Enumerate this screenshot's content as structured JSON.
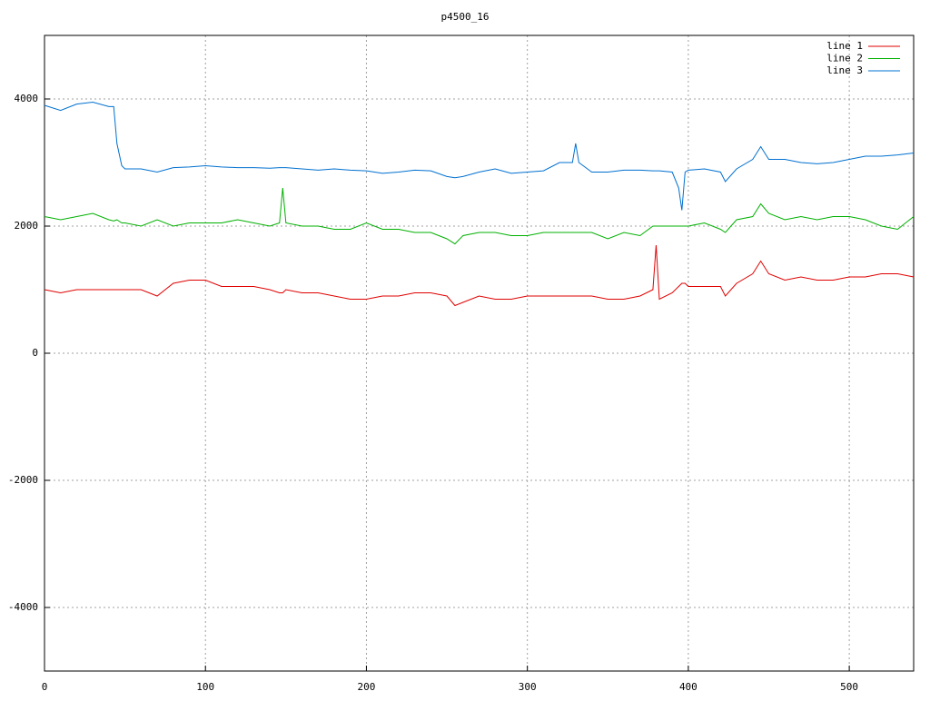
{
  "chart_data": {
    "type": "line",
    "title": "p4500_16",
    "x": [
      0,
      10,
      20,
      30,
      40,
      43,
      45,
      48,
      50,
      60,
      70,
      80,
      90,
      100,
      110,
      120,
      130,
      140,
      146,
      148,
      150,
      160,
      170,
      180,
      190,
      200,
      210,
      220,
      230,
      240,
      250,
      255,
      260,
      270,
      280,
      290,
      300,
      310,
      320,
      328,
      330,
      332,
      340,
      350,
      360,
      370,
      378,
      380,
      382,
      390,
      394,
      396,
      398,
      400,
      410,
      420,
      423,
      430,
      440,
      445,
      450,
      460,
      470,
      480,
      490,
      500,
      510,
      520,
      530,
      540
    ],
    "series": [
      {
        "name": "line 1",
        "color": "#e00000",
        "values": [
          1000,
          950,
          1000,
          1000,
          1000,
          1000,
          1000,
          1000,
          1000,
          1000,
          900,
          1100,
          1150,
          1150,
          1050,
          1050,
          1050,
          1000,
          950,
          950,
          1000,
          950,
          950,
          900,
          850,
          850,
          900,
          900,
          950,
          950,
          900,
          750,
          800,
          900,
          850,
          850,
          900,
          900,
          900,
          900,
          900,
          900,
          900,
          850,
          850,
          900,
          1000,
          1700,
          850,
          950,
          1050,
          1100,
          1100,
          1050,
          1050,
          1050,
          900,
          1100,
          1250,
          1450,
          1250,
          1150,
          1200,
          1150,
          1150,
          1200,
          1200,
          1250,
          1250,
          1200
        ]
      },
      {
        "name": "line 2",
        "color": "#00b000",
        "values": [
          2150,
          2100,
          2150,
          2200,
          2100,
          2080,
          2100,
          2050,
          2050,
          2000,
          2100,
          2000,
          2050,
          2050,
          2050,
          2100,
          2050,
          2000,
          2050,
          2600,
          2050,
          2000,
          2000,
          1950,
          1950,
          2050,
          1950,
          1950,
          1900,
          1900,
          1800,
          1720,
          1850,
          1900,
          1900,
          1850,
          1850,
          1900,
          1900,
          1900,
          1900,
          1900,
          1900,
          1800,
          1900,
          1850,
          2000,
          2000,
          2000,
          2000,
          2000,
          2000,
          2000,
          2000,
          2050,
          1950,
          1900,
          2100,
          2150,
          2350,
          2200,
          2100,
          2150,
          2100,
          2150,
          2150,
          2100,
          2000,
          1950,
          2150
        ]
      },
      {
        "name": "line 3",
        "color": "#0070d0",
        "values": [
          3900,
          3820,
          3920,
          3950,
          3880,
          3880,
          3300,
          2950,
          2900,
          2900,
          2850,
          2920,
          2930,
          2950,
          2930,
          2920,
          2920,
          2910,
          2920,
          2920,
          2920,
          2900,
          2880,
          2900,
          2880,
          2870,
          2830,
          2850,
          2880,
          2870,
          2780,
          2760,
          2780,
          2850,
          2900,
          2830,
          2850,
          2870,
          3000,
          3000,
          3300,
          3000,
          2850,
          2850,
          2880,
          2880,
          2870,
          2870,
          2870,
          2850,
          2600,
          2250,
          2850,
          2880,
          2900,
          2850,
          2700,
          2900,
          3050,
          3250,
          3050,
          3050,
          3000,
          2980,
          3000,
          3050,
          3100,
          3100,
          3120,
          3150
        ]
      }
    ],
    "xlim": [
      0,
      540
    ],
    "ylim": [
      -5000,
      5000
    ],
    "xticks": [
      0,
      100,
      200,
      300,
      400,
      500
    ],
    "yticks": [
      -4000,
      -2000,
      0,
      2000,
      4000
    ],
    "grid": true,
    "legend": "top-right"
  }
}
